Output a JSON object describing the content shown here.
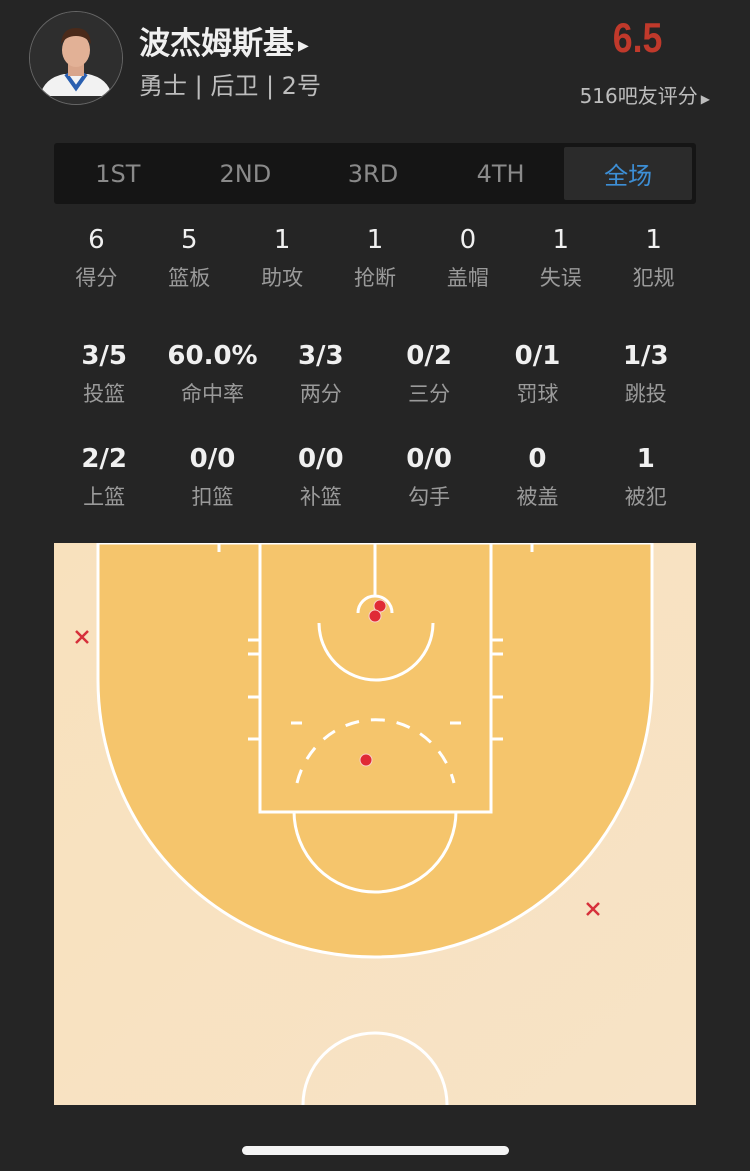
{
  "player": {
    "name": "波杰姆斯基",
    "info": "勇士 | 后卫 | 2号",
    "rating": "6.5",
    "raters": "516吧友评分"
  },
  "tabs": [
    {
      "label": "1ST"
    },
    {
      "label": "2ND"
    },
    {
      "label": "3RD"
    },
    {
      "label": "4TH"
    },
    {
      "label": "全场",
      "active": true
    }
  ],
  "accent": "#3d8fd6",
  "rating_color": "#c0392b",
  "stats_main": [
    {
      "value": "6",
      "label": "得分"
    },
    {
      "value": "5",
      "label": "篮板"
    },
    {
      "value": "1",
      "label": "助攻"
    },
    {
      "value": "1",
      "label": "抢断"
    },
    {
      "value": "0",
      "label": "盖帽"
    },
    {
      "value": "1",
      "label": "失误"
    },
    {
      "value": "1",
      "label": "犯规"
    }
  ],
  "stats_shooting": [
    {
      "value": "3/5",
      "label": "投篮"
    },
    {
      "value": "60.0%",
      "label": "命中率"
    },
    {
      "value": "3/3",
      "label": "两分"
    },
    {
      "value": "0/2",
      "label": "三分"
    },
    {
      "value": "0/1",
      "label": "罚球"
    },
    {
      "value": "1/3",
      "label": "跳投"
    }
  ],
  "stats_detail": [
    {
      "value": "2/2",
      "label": "上篮"
    },
    {
      "value": "0/0",
      "label": "扣篮"
    },
    {
      "value": "0/0",
      "label": "补篮"
    },
    {
      "value": "0/0",
      "label": "勾手"
    },
    {
      "value": "0",
      "label": "被盖"
    },
    {
      "value": "1",
      "label": "被犯"
    }
  ],
  "shot_chart": {
    "shots": [
      {
        "result": "made"
      },
      {
        "result": "made"
      },
      {
        "result": "made"
      },
      {
        "result": "missed"
      },
      {
        "result": "missed"
      }
    ],
    "made_color": "#e02a35",
    "missed_color": "#d6303a"
  }
}
